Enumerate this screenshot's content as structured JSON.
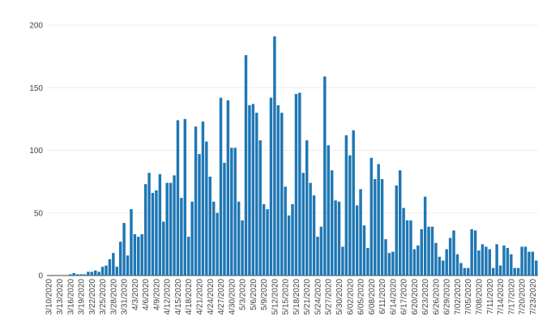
{
  "chart_data": {
    "type": "bar",
    "title": "",
    "xlabel": "",
    "ylabel": "",
    "ylim": [
      0,
      200
    ],
    "yticks": [
      0,
      50,
      100,
      150,
      200
    ],
    "grid": true,
    "legend": "none",
    "bar_color": "#1f77b4",
    "start_date": "2020-03-10",
    "x_tick_labels": [
      "3/10/2020",
      "3/13/2020",
      "3/16/2020",
      "3/19/2020",
      "3/22/2020",
      "3/25/2020",
      "3/28/2020",
      "3/31/2020",
      "4/3/2020",
      "4/6/2020",
      "4/9/2020",
      "4/12/2020",
      "4/15/2020",
      "4/18/2020",
      "4/21/2020",
      "4/24/2020",
      "4/27/2020",
      "4/30/2020",
      "5/3/2020",
      "5/6/2020",
      "5/9/2020",
      "5/12/2020",
      "5/15/2020",
      "5/18/2020",
      "5/21/2020",
      "5/24/2020",
      "5/27/2020",
      "5/30/2020",
      "6/02/2020",
      "6/05/2020",
      "6/08/2020",
      "6/11/2020",
      "6/14/2020",
      "6/17/2020",
      "6/20/2020",
      "6/23/2020",
      "6/26/2020",
      "6/29/2020",
      "7/02/2020",
      "7/05/2020",
      "7/08/2020",
      "7/11/2020",
      "7/14/2020",
      "7/17/2020",
      "7/20/2020",
      "7/23/2020"
    ],
    "values": [
      0,
      0,
      0,
      0,
      0,
      0,
      1,
      2,
      1,
      1,
      1,
      3,
      3,
      4,
      3,
      7,
      8,
      13,
      18,
      7,
      27,
      42,
      16,
      53,
      33,
      31,
      33,
      73,
      82,
      66,
      68,
      81,
      43,
      74,
      74,
      80,
      124,
      62,
      125,
      31,
      59,
      119,
      97,
      123,
      107,
      79,
      59,
      50,
      142,
      90,
      140,
      102,
      102,
      59,
      44,
      176,
      136,
      137,
      130,
      108,
      57,
      53,
      142,
      191,
      136,
      130,
      71,
      48,
      57,
      145,
      146,
      82,
      108,
      74,
      64,
      31,
      39,
      159,
      104,
      84,
      60,
      59,
      23,
      112,
      96,
      116,
      56,
      69,
      40,
      22,
      94,
      77,
      89,
      77,
      29,
      18,
      19,
      72,
      84,
      54,
      44,
      44,
      21,
      24,
      37,
      63,
      39,
      39,
      26,
      15,
      12,
      21,
      30,
      36,
      17,
      10,
      6,
      6,
      37,
      36,
      20,
      25,
      23,
      21,
      6,
      25,
      8,
      24,
      22,
      17,
      6,
      6,
      23,
      23,
      19,
      19,
      12
    ]
  }
}
